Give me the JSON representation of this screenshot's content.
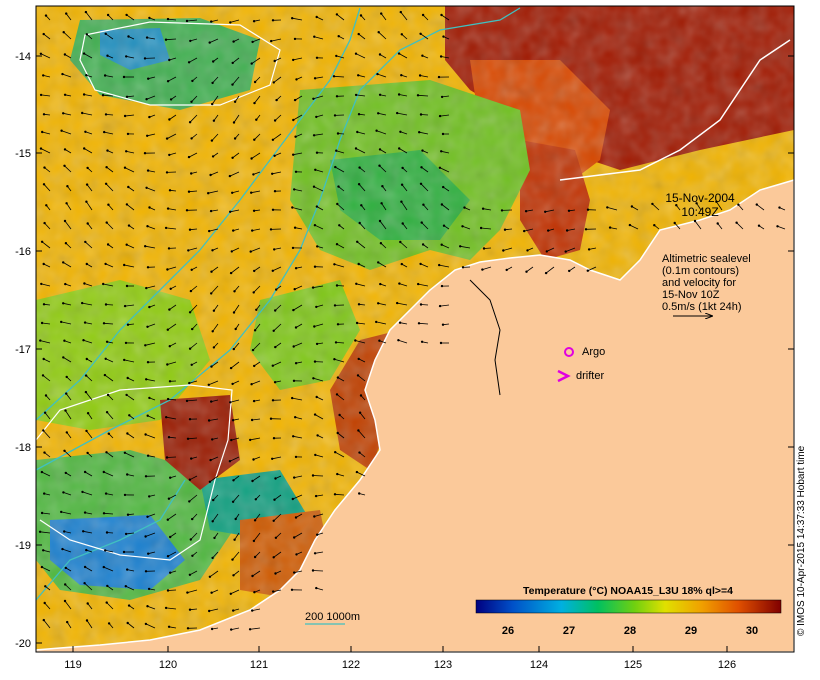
{
  "map": {
    "annotations": {
      "date": "15-Nov-2004",
      "time": "10:49Z",
      "altimetry": [
        "Altimetric sealevel",
        "(0.1m contours)",
        "and velocity for",
        "15-Nov 10Z",
        "0.5m/s (1kt 24h)"
      ],
      "argo_label": "Argo",
      "drifter_label": "drifter",
      "depth_label": "200  1000m"
    },
    "axes": {
      "lon_ticks": [
        "119",
        "120",
        "121",
        "122",
        "123",
        "124",
        "125",
        "126"
      ],
      "lat_ticks": [
        "-14",
        "-15",
        "-16",
        "-17",
        "-18",
        "-19",
        "-20"
      ]
    },
    "colorbar": {
      "title": "Temperature (°C) NOAA15_L3U 18% ql>=4",
      "ticks": [
        "26",
        "27",
        "28",
        "29",
        "30"
      ],
      "colors": [
        "#000080",
        "#0040c0",
        "#00a0e0",
        "#00c080",
        "#40c020",
        "#c0e000",
        "#f0c000",
        "#f08000",
        "#d04000",
        "#800000"
      ]
    },
    "colors": {
      "land": "#fbc99a",
      "coast": "#ffffff",
      "isobath": "#40c0c0",
      "sealevel_contour": "#ffffff",
      "argo": "#e000e0",
      "drifter": "#e000e0"
    },
    "credit": "© IMOS 10-Apr-2015 14:37:33 Hobart time"
  }
}
